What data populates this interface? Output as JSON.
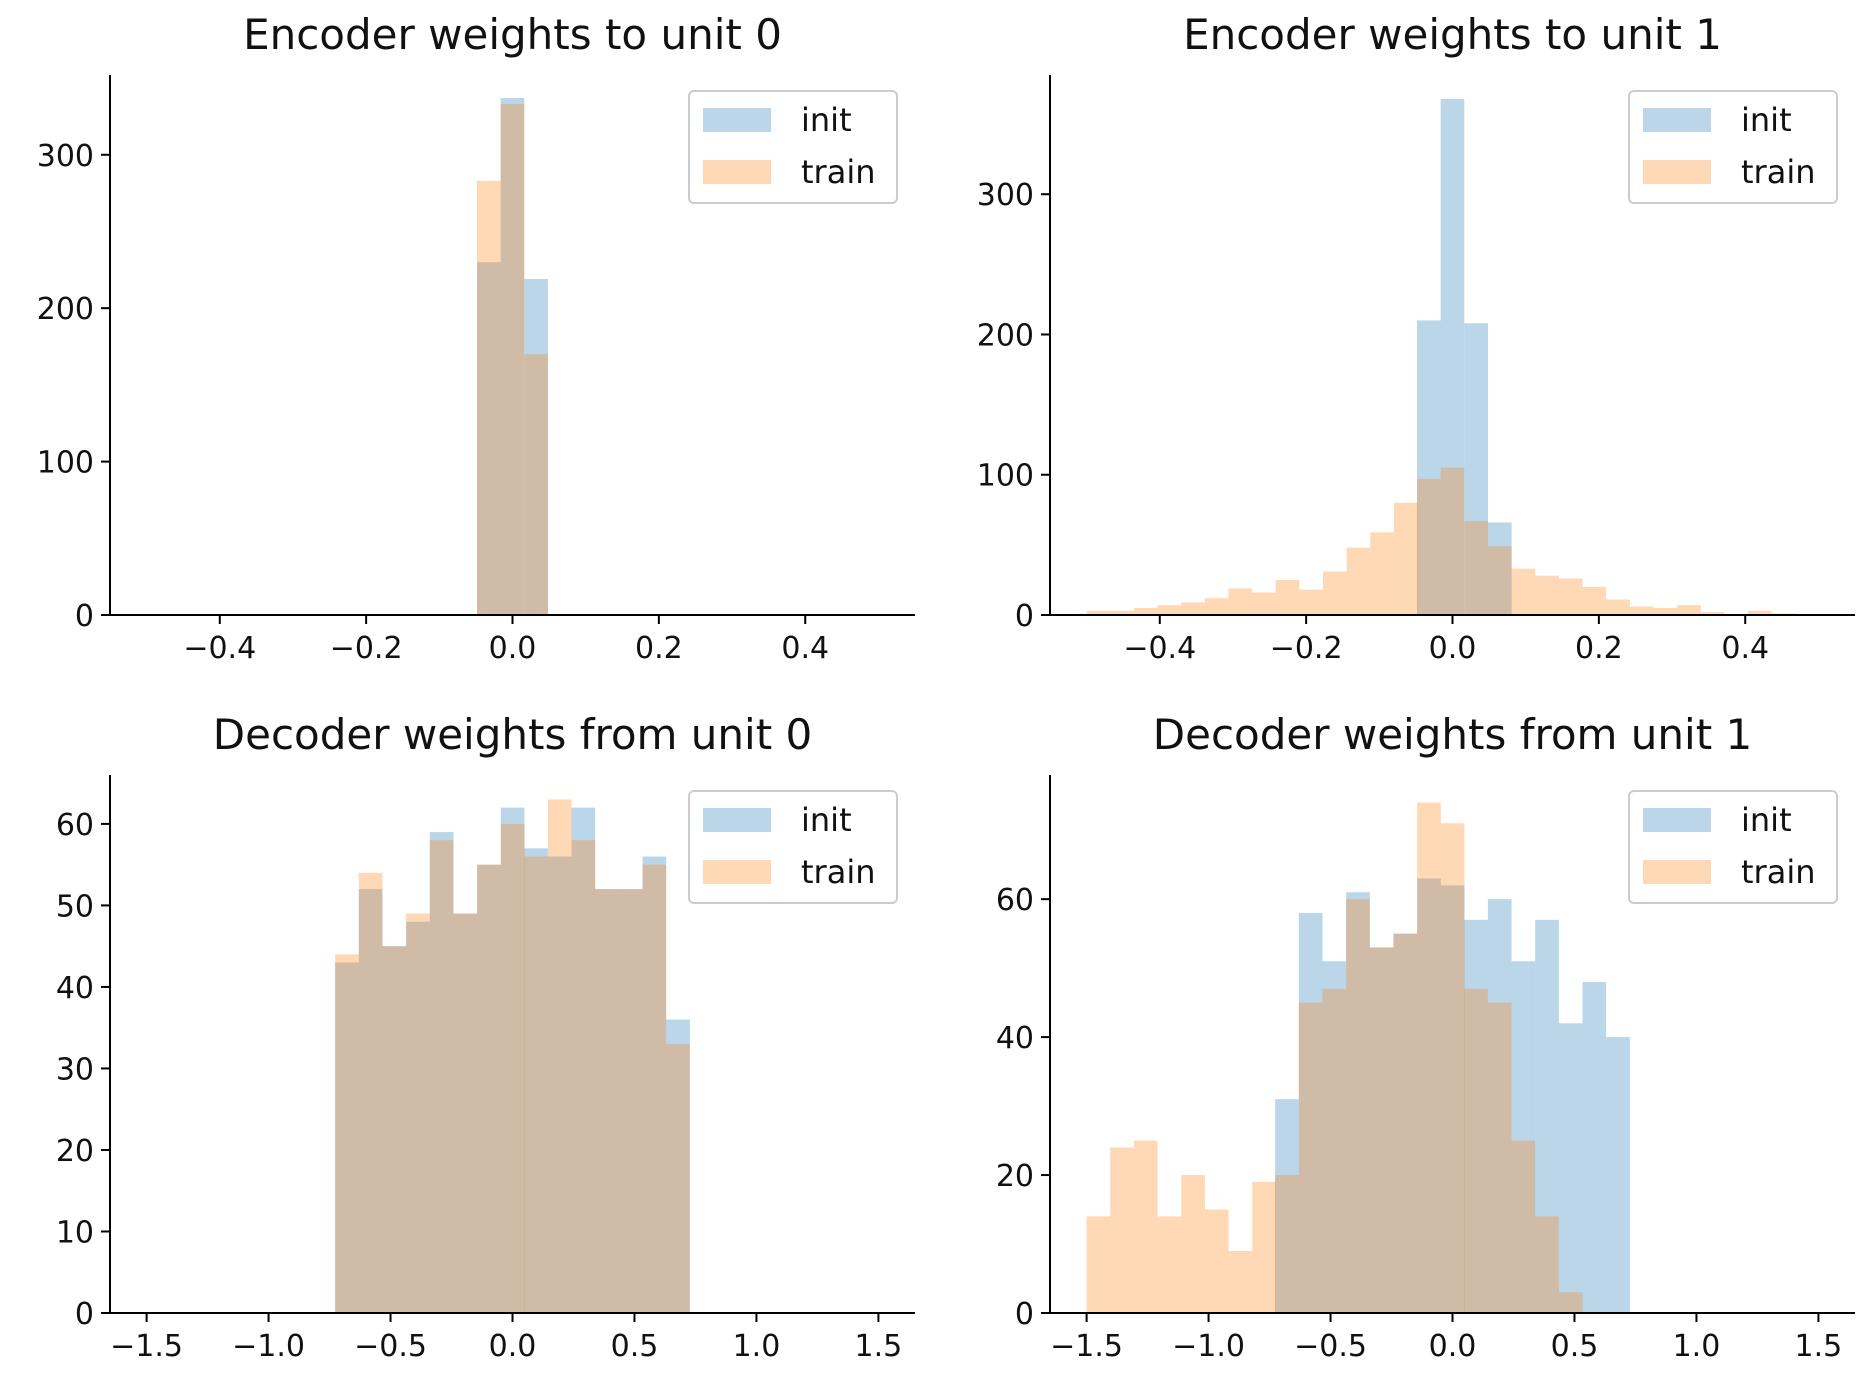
{
  "colors": {
    "init": "#1f77b4",
    "train": "#ff7f0e"
  },
  "chart_data": [
    {
      "type": "bar",
      "title": "Encoder weights to unit 0",
      "xlabel": "",
      "ylabel": "",
      "xlim": [
        -0.55,
        0.55
      ],
      "ylim": [
        0,
        352
      ],
      "xticks": [
        -0.4,
        -0.2,
        0.0,
        0.2,
        0.4
      ],
      "xtick_labels": [
        "−0.4",
        "−0.2",
        "0.0",
        "0.2",
        "0.4"
      ],
      "yticks": [
        0,
        100,
        200,
        300
      ],
      "ytick_labels": [
        "0",
        "100",
        "200",
        "300"
      ],
      "legend": [
        "init",
        "train"
      ],
      "legend_position": "top-right",
      "bin_width": 0.0323,
      "series": [
        {
          "name": "init",
          "bins": [
            [
              -0.0485,
              230
            ],
            [
              -0.0162,
              337
            ],
            [
              0.0162,
              219
            ]
          ]
        },
        {
          "name": "train",
          "bins": [
            [
              -0.0485,
              283
            ],
            [
              -0.0162,
              333
            ],
            [
              0.0162,
              170
            ]
          ]
        }
      ]
    },
    {
      "type": "bar",
      "title": "Encoder weights to unit 1",
      "xlabel": "",
      "ylabel": "",
      "xlim": [
        -0.55,
        0.55
      ],
      "ylim": [
        0,
        385
      ],
      "xticks": [
        -0.4,
        -0.2,
        0.0,
        0.2,
        0.4
      ],
      "xtick_labels": [
        "−0.4",
        "−0.2",
        "0.0",
        "0.2",
        "0.4"
      ],
      "yticks": [
        0,
        100,
        200,
        300
      ],
      "ytick_labels": [
        "0",
        "100",
        "200",
        "300"
      ],
      "legend": [
        "init",
        "train"
      ],
      "legend_position": "top-right",
      "bin_width": 0.0323,
      "series": [
        {
          "name": "init",
          "bins": [
            [
              -0.0485,
              210
            ],
            [
              -0.0162,
              368
            ],
            [
              0.0162,
              208
            ],
            [
              0.0485,
              66
            ]
          ]
        },
        {
          "name": "train",
          "bins": [
            [
              -0.5,
              3
            ],
            [
              -0.4677,
              3
            ],
            [
              -0.4354,
              5
            ],
            [
              -0.4031,
              7
            ],
            [
              -0.3708,
              9
            ],
            [
              -0.3385,
              12
            ],
            [
              -0.3062,
              19
            ],
            [
              -0.2739,
              16
            ],
            [
              -0.2416,
              25
            ],
            [
              -0.2093,
              18
            ],
            [
              -0.177,
              31
            ],
            [
              -0.1447,
              48
            ],
            [
              -0.1124,
              59
            ],
            [
              -0.0801,
              80
            ],
            [
              -0.0485,
              97
            ],
            [
              -0.0162,
              105
            ],
            [
              0.0162,
              67
            ],
            [
              0.0485,
              49
            ],
            [
              0.0808,
              33
            ],
            [
              0.1131,
              28
            ],
            [
              0.1454,
              26
            ],
            [
              0.1777,
              20
            ],
            [
              0.21,
              11
            ],
            [
              0.2423,
              6
            ],
            [
              0.2746,
              5
            ],
            [
              0.3069,
              7
            ],
            [
              0.3392,
              2
            ],
            [
              0.3715,
              0
            ],
            [
              0.4038,
              3
            ],
            [
              0.4361,
              1
            ]
          ]
        }
      ]
    },
    {
      "type": "bar",
      "title": "Decoder weights from unit 0",
      "xlabel": "",
      "ylabel": "",
      "xlim": [
        -1.65,
        1.65
      ],
      "ylim": [
        0,
        66
      ],
      "xticks": [
        -1.5,
        -1.0,
        -0.5,
        0.0,
        0.5,
        1.0,
        1.5
      ],
      "xtick_labels": [
        "−1.5",
        "−1.0",
        "−0.5",
        "0.0",
        "0.5",
        "1.0",
        "1.5"
      ],
      "yticks": [
        0,
        10,
        20,
        30,
        40,
        50,
        60
      ],
      "ytick_labels": [
        "0",
        "10",
        "20",
        "30",
        "40",
        "50",
        "60"
      ],
      "legend": [
        "init",
        "train"
      ],
      "legend_position": "top-right",
      "bin_width": 0.097,
      "series": [
        {
          "name": "init",
          "bins": [
            [
              -0.727,
              43
            ],
            [
              -0.63,
              52
            ],
            [
              -0.533,
              45
            ],
            [
              -0.436,
              48
            ],
            [
              -0.339,
              59
            ],
            [
              -0.242,
              49
            ],
            [
              -0.145,
              55
            ],
            [
              -0.048,
              62
            ],
            [
              0.048,
              57
            ],
            [
              0.145,
              56
            ],
            [
              0.242,
              62
            ],
            [
              0.339,
              52
            ],
            [
              0.436,
              52
            ],
            [
              0.533,
              56
            ],
            [
              0.63,
              36
            ]
          ]
        },
        {
          "name": "train",
          "bins": [
            [
              -0.727,
              44
            ],
            [
              -0.63,
              54
            ],
            [
              -0.533,
              45
            ],
            [
              -0.436,
              49
            ],
            [
              -0.339,
              58
            ],
            [
              -0.242,
              49
            ],
            [
              -0.145,
              55
            ],
            [
              -0.048,
              60
            ],
            [
              0.048,
              56
            ],
            [
              0.145,
              63
            ],
            [
              0.242,
              58
            ],
            [
              0.339,
              52
            ],
            [
              0.436,
              52
            ],
            [
              0.533,
              55
            ],
            [
              0.63,
              33
            ]
          ]
        }
      ]
    },
    {
      "type": "bar",
      "title": "Decoder weights from unit 1",
      "xlabel": "",
      "ylabel": "",
      "xlim": [
        -1.65,
        1.65
      ],
      "ylim": [
        0,
        78
      ],
      "xticks": [
        -1.5,
        -1.0,
        -0.5,
        0.0,
        0.5,
        1.0,
        1.5
      ],
      "xtick_labels": [
        "−1.5",
        "−1.0",
        "−0.5",
        "0.0",
        "0.5",
        "1.0",
        "1.5"
      ],
      "yticks": [
        0,
        20,
        40,
        60
      ],
      "ytick_labels": [
        "0",
        "20",
        "40",
        "60"
      ],
      "legend": [
        "init",
        "train"
      ],
      "legend_position": "top-right",
      "bin_width": 0.097,
      "series": [
        {
          "name": "init",
          "bins": [
            [
              -0.727,
              31
            ],
            [
              -0.63,
              58
            ],
            [
              -0.533,
              51
            ],
            [
              -0.436,
              61
            ],
            [
              -0.339,
              53
            ],
            [
              -0.242,
              55
            ],
            [
              -0.145,
              63
            ],
            [
              -0.048,
              62
            ],
            [
              0.048,
              57
            ],
            [
              0.145,
              60
            ],
            [
              0.242,
              51
            ],
            [
              0.339,
              57
            ],
            [
              0.436,
              42
            ],
            [
              0.533,
              48
            ],
            [
              0.63,
              40
            ]
          ]
        },
        {
          "name": "train",
          "bins": [
            [
              -1.5,
              14
            ],
            [
              -1.403,
              24
            ],
            [
              -1.306,
              25
            ],
            [
              -1.209,
              14
            ],
            [
              -1.112,
              20
            ],
            [
              -1.015,
              15
            ],
            [
              -0.918,
              9
            ],
            [
              -0.821,
              19
            ],
            [
              -0.727,
              20
            ],
            [
              -0.63,
              45
            ],
            [
              -0.533,
              47
            ],
            [
              -0.436,
              60
            ],
            [
              -0.339,
              53
            ],
            [
              -0.242,
              55
            ],
            [
              -0.145,
              74
            ],
            [
              -0.048,
              71
            ],
            [
              0.048,
              47
            ],
            [
              0.145,
              45
            ],
            [
              0.242,
              25
            ],
            [
              0.339,
              14
            ],
            [
              0.436,
              3
            ]
          ]
        }
      ]
    }
  ]
}
